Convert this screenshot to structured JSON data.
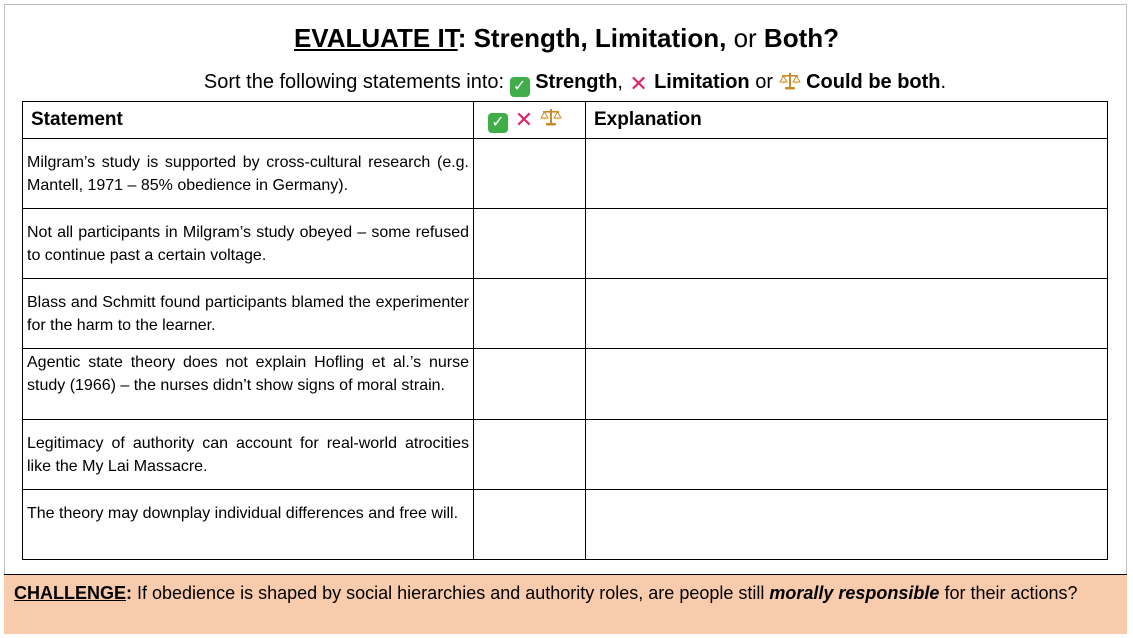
{
  "title": {
    "part1": "EVALUATE IT",
    "part2": ": Strength, Limitation,",
    "part3": " or ",
    "part4": "Both?"
  },
  "subtitle": {
    "lead": "Sort the following statements into: ",
    "strength": "Strength",
    "sep1": ", ",
    "limitation": "Limitation",
    "sep2": " or ",
    "both": "Could be both",
    "end": "."
  },
  "icons": {
    "strength": "check-mark-icon",
    "limitation": "cross-mark-icon",
    "both": "balance-scale-icon",
    "strength_color": "#3fae49",
    "limitation_color": "#e0245e",
    "both_color": "#e8a33d"
  },
  "table": {
    "headers": {
      "statement": "Statement",
      "explanation": "Explanation"
    },
    "rows": [
      {
        "statement": "Milgram’s study is supported by cross-cultural research (e.g. Mantell, 1971 – 85% obedience in Germany)."
      },
      {
        "statement": "Not all participants in Milgram’s study obeyed – some refused to continue past a certain voltage."
      },
      {
        "statement": "Blass and Schmitt found participants blamed the experimenter for the harm to the learner."
      },
      {
        "statement": "Agentic state theory does not explain Hofling et al.’s nurse study (1966) – the nurses didn’t show signs of moral strain."
      },
      {
        "statement": "Legitimacy of authority can account for real-world atrocities like the My Lai Massacre."
      },
      {
        "statement": "The theory may downplay individual differences and free will."
      }
    ]
  },
  "challenge": {
    "label": "CHALLENGE",
    "colon": ":",
    "text1": " If obedience is shaped by social hierarchies and authority roles, are people still ",
    "emphasis": "morally responsible",
    "text2": " for their actions?"
  },
  "colors": {
    "challenge_bg": "#f8cbad",
    "border": "#000000"
  }
}
